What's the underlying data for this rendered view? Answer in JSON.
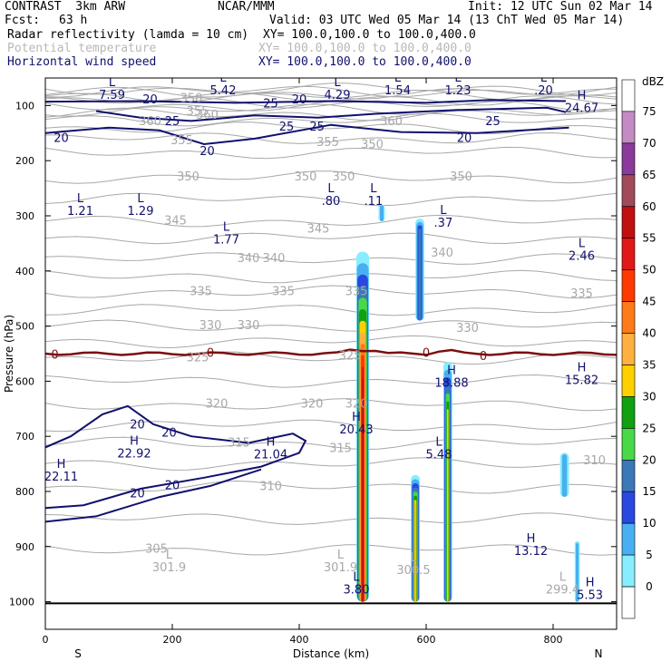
{
  "header": {
    "model": "CONTRAST  3km ARW",
    "center": "NCAR/MMM",
    "init": "Init: 12 UTC Sun 02 Mar 14",
    "fcst_label": "Fcst:",
    "fcst_value": "63 h",
    "valid": "Valid: 03 UTC Wed 05 Mar 14 (13 ChT Wed 05 Mar 14)",
    "fields": [
      {
        "name": "Radar reflectivity (lamda = 10 cm)",
        "xy": "XY= 100.0,100.0 to 100.0,400.0",
        "style": "black"
      },
      {
        "name": "Potential temperature",
        "xy": "XY= 100.0,100.0 to 100.0,400.0",
        "style": "gray"
      },
      {
        "name": "Horizontal wind speed",
        "xy": "XY= 100.0,100.0 to 100.0,400.0",
        "style": "navy"
      }
    ]
  },
  "chart_data": {
    "type": "cross-section",
    "xlabel": "Distance (km)",
    "ylabel": "Pressure (hPa)",
    "xlim": [
      0,
      900
    ],
    "ylim": [
      1050,
      50
    ],
    "x_ticks": [
      "0",
      "200",
      "400",
      "600",
      "800"
    ],
    "y_ticks": [
      "100",
      "200",
      "300",
      "400",
      "500",
      "600",
      "700",
      "800",
      "900",
      "1000"
    ],
    "x_end_labels": {
      "left": "S",
      "right": "N"
    },
    "colorbar": {
      "unit": "dBZ",
      "levels": [
        "75",
        "70",
        "65",
        "60",
        "55",
        "50",
        "45",
        "40",
        "35",
        "30",
        "25",
        "20",
        "15",
        "10",
        "5",
        "0"
      ],
      "colors": [
        "#ffffff",
        "#c48ac4",
        "#8a3a9a",
        "#a04a5a",
        "#c01010",
        "#e01818",
        "#ff3a00",
        "#ff7a18",
        "#ffb040",
        "#ffd000",
        "#10a010",
        "#48d848",
        "#3a78b8",
        "#2848e0",
        "#48b0f0",
        "#88eeff",
        "#ffffff"
      ]
    },
    "freezing_level": {
      "label": "0",
      "pressure": 550
    },
    "cells": [
      {
        "x_center": 500,
        "width_km": 20,
        "p_top": 365,
        "p_bottom": 1000,
        "max_dbz": 60
      },
      {
        "x_center": 583,
        "width_km": 14,
        "p_top": 770,
        "p_bottom": 1000,
        "max_dbz": 40
      },
      {
        "x_center": 634,
        "width_km": 14,
        "p_top": 565,
        "p_bottom": 1000,
        "max_dbz": 35
      },
      {
        "x_center": 590,
        "width_km": 14,
        "p_top": 305,
        "p_bottom": 490,
        "max_dbz": 20
      },
      {
        "x_center": 530,
        "width_km": 10,
        "p_top": 280,
        "p_bottom": 310,
        "max_dbz": 10
      },
      {
        "x_center": 818,
        "width_km": 14,
        "p_top": 730,
        "p_bottom": 810,
        "max_dbz": 10
      },
      {
        "x_center": 838,
        "width_km": 8,
        "p_top": 890,
        "p_bottom": 1000,
        "max_dbz": 10
      }
    ],
    "theta_labels": [
      {
        "text": "350",
        "x": 230,
        "p": 88
      },
      {
        "text": "355",
        "x": 240,
        "p": 112
      },
      {
        "text": "360",
        "x": 255,
        "p": 118
      },
      {
        "text": "360",
        "x": 165,
        "p": 130
      },
      {
        "text": "360",
        "x": 545,
        "p": 130
      },
      {
        "text": "355",
        "x": 215,
        "p": 164
      },
      {
        "text": "355",
        "x": 445,
        "p": 168
      },
      {
        "text": "350",
        "x": 515,
        "p": 172
      },
      {
        "text": "350",
        "x": 225,
        "p": 230
      },
      {
        "text": "350",
        "x": 410,
        "p": 230
      },
      {
        "text": "350",
        "x": 470,
        "p": 230
      },
      {
        "text": "350",
        "x": 655,
        "p": 230
      },
      {
        "text": "345",
        "x": 205,
        "p": 310
      },
      {
        "text": "345",
        "x": 430,
        "p": 325
      },
      {
        "text": "340",
        "x": 320,
        "p": 378
      },
      {
        "text": "340",
        "x": 360,
        "p": 378
      },
      {
        "text": "340",
        "x": 625,
        "p": 368
      },
      {
        "text": "335",
        "x": 245,
        "p": 438
      },
      {
        "text": "335",
        "x": 375,
        "p": 438
      },
      {
        "text": "335",
        "x": 490,
        "p": 438
      },
      {
        "text": "335",
        "x": 845,
        "p": 442
      },
      {
        "text": "330",
        "x": 260,
        "p": 500
      },
      {
        "text": "330",
        "x": 320,
        "p": 500
      },
      {
        "text": "330",
        "x": 665,
        "p": 505
      },
      {
        "text": "325",
        "x": 240,
        "p": 558
      },
      {
        "text": "325",
        "x": 480,
        "p": 555
      },
      {
        "text": "320",
        "x": 270,
        "p": 642
      },
      {
        "text": "320",
        "x": 420,
        "p": 642
      },
      {
        "text": "320",
        "x": 490,
        "p": 642
      },
      {
        "text": "315",
        "x": 305,
        "p": 713
      },
      {
        "text": "315",
        "x": 465,
        "p": 723
      },
      {
        "text": "310",
        "x": 355,
        "p": 792
      },
      {
        "text": "310",
        "x": 865,
        "p": 745
      },
      {
        "text": "305",
        "x": 175,
        "p": 905
      },
      {
        "text": "0",
        "x": 15,
        "p": 553
      },
      {
        "text": "0",
        "x": 260,
        "p": 550
      },
      {
        "text": "0",
        "x": 600,
        "p": 550
      },
      {
        "text": "0",
        "x": 690,
        "p": 556
      }
    ],
    "theta_extrema": [
      {
        "kind": "L",
        "value": "301.9",
        "x": 195,
        "p": 945
      },
      {
        "kind": "L",
        "value": "301.9",
        "x": 465,
        "p": 945
      },
      {
        "kind": "L",
        "value": "300.5",
        "x": 580,
        "p": 950
      },
      {
        "kind": "L",
        "value": "299.4",
        "x": 815,
        "p": 985
      }
    ],
    "wind_contour_labels": [
      {
        "text": "20",
        "x": 165,
        "p": 90
      },
      {
        "text": "25",
        "x": 355,
        "p": 98
      },
      {
        "text": "20",
        "x": 400,
        "p": 90
      },
      {
        "text": "25",
        "x": 200,
        "p": 130
      },
      {
        "text": "25",
        "x": 380,
        "p": 140
      },
      {
        "text": "25",
        "x": 428,
        "p": 140
      },
      {
        "text": "25",
        "x": 705,
        "p": 130
      },
      {
        "text": "20",
        "x": 25,
        "p": 160
      },
      {
        "text": "20",
        "x": 660,
        "p": 160
      },
      {
        "text": "20",
        "x": 255,
        "p": 184
      },
      {
        "text": "20",
        "x": 145,
        "p": 680
      },
      {
        "text": "20",
        "x": 195,
        "p": 695
      },
      {
        "text": "20",
        "x": 145,
        "p": 805
      },
      {
        "text": "20",
        "x": 200,
        "p": 790
      }
    ],
    "wind_extrema": [
      {
        "kind": "L",
        "value": "7.59",
        "x": 105,
        "p": 88
      },
      {
        "kind": "L",
        "value": "5.42",
        "x": 280,
        "p": 80
      },
      {
        "kind": "L",
        "value": "4.29",
        "x": 460,
        "p": 88
      },
      {
        "kind": "L",
        "value": "1.54",
        "x": 555,
        "p": 80
      },
      {
        "kind": "L",
        "value": "1.23",
        "x": 650,
        "p": 80
      },
      {
        "kind": "L",
        "value": ".20",
        "x": 785,
        "p": 80
      },
      {
        "kind": "H",
        "value": "24.67",
        "x": 845,
        "p": 112
      },
      {
        "kind": "L",
        "value": "1.21",
        "x": 55,
        "p": 298
      },
      {
        "kind": "L",
        "value": "1.29",
        "x": 150,
        "p": 298
      },
      {
        "kind": "L",
        "value": ".80",
        "x": 450,
        "p": 280
      },
      {
        "kind": "L",
        "value": ".11",
        "x": 517,
        "p": 280
      },
      {
        "kind": "L",
        "value": ".37",
        "x": 627,
        "p": 320
      },
      {
        "kind": "L",
        "value": "1.77",
        "x": 285,
        "p": 350
      },
      {
        "kind": "L",
        "value": "2.46",
        "x": 845,
        "p": 380
      },
      {
        "kind": "H",
        "value": "18.88",
        "x": 640,
        "p": 610
      },
      {
        "kind": "H",
        "value": "15.82",
        "x": 845,
        "p": 605
      },
      {
        "kind": "H",
        "value": "20.43",
        "x": 490,
        "p": 695
      },
      {
        "kind": "H",
        "value": "22.92",
        "x": 140,
        "p": 738
      },
      {
        "kind": "H",
        "value": "21.04",
        "x": 355,
        "p": 740
      },
      {
        "kind": "L",
        "value": "5.48",
        "x": 620,
        "p": 740
      },
      {
        "kind": "H",
        "value": "22.11",
        "x": 25,
        "p": 780
      },
      {
        "kind": "H",
        "value": "13.12",
        "x": 765,
        "p": 915
      },
      {
        "kind": "L",
        "value": "3.80",
        "x": 490,
        "p": 985
      },
      {
        "kind": "H",
        "value": "5.53",
        "x": 858,
        "p": 995
      }
    ]
  }
}
